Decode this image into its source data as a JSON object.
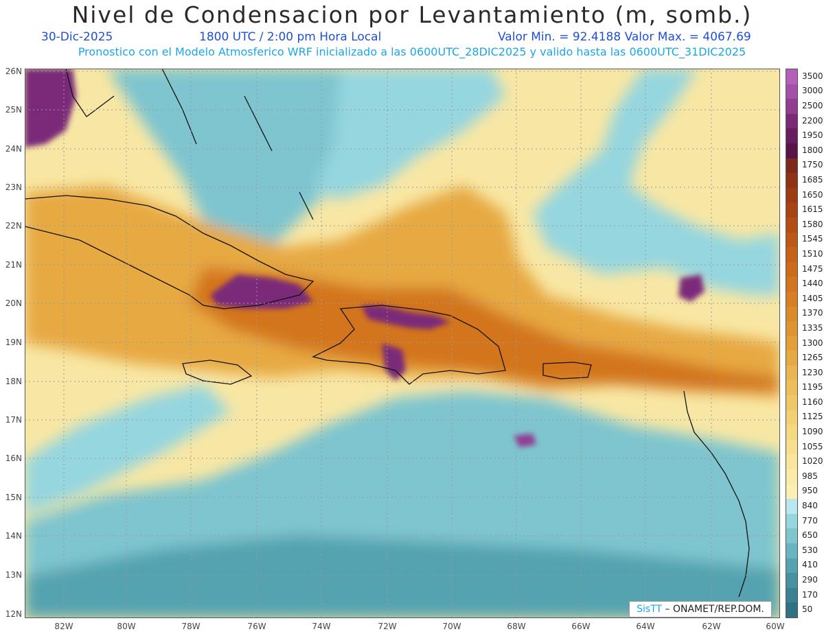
{
  "title": "Nivel de Condensacion por Levantamiento (m, somb.)",
  "date": "30-Dic-2025",
  "time": "1800 UTC / 2:00 pm Hora Local",
  "stats": "Valor Min. = 92.4188   Valor Max. = 4067.69",
  "description": "Pronostico con el Modelo Atmosferico WRF inicializado a las 0600UTC_28DIC2025 y valido hasta las  0600UTC_31DIC2025",
  "credit_sis": "SisTT",
  "credit_rest": " – ONAMET/REP.DOM.",
  "lat_labels": [
    "26N",
    "25N",
    "24N",
    "23N",
    "22N",
    "21N",
    "20N",
    "19N",
    "18N",
    "17N",
    "16N",
    "15N",
    "14N",
    "13N",
    "12N"
  ],
  "lon_labels": [
    "82W",
    "80W",
    "78W",
    "76W",
    "74W",
    "72W",
    "70W",
    "68W",
    "66W",
    "64W",
    "62W",
    "60W"
  ],
  "colorbar": {
    "labels": [
      "3500",
      "3000",
      "2500",
      "2200",
      "1950",
      "1800",
      "1750",
      "1685",
      "1650",
      "1615",
      "1580",
      "1545",
      "1510",
      "1475",
      "1440",
      "1405",
      "1370",
      "1335",
      "1300",
      "1265",
      "1230",
      "1195",
      "1160",
      "1125",
      "1090",
      "1055",
      "1020",
      "985",
      "950",
      "840",
      "770",
      "650",
      "530",
      "410",
      "290",
      "170",
      "50"
    ],
    "colors": [
      "#b65fb8",
      "#a64fa8",
      "#913d92",
      "#7a2a78",
      "#681e5e",
      "#5a1346",
      "#7e2a1a",
      "#8e3316",
      "#9c3b14",
      "#a84413",
      "#b44d14",
      "#be5716",
      "#c66118",
      "#cd6b1b",
      "#d3751f",
      "#d87f24",
      "#dc892a",
      "#e09431",
      "#e49f39",
      "#e7a943",
      "#eab44e",
      "#edbe5a",
      "#f0c767",
      "#f3d074",
      "#f5d882",
      "#f7df8f",
      "#f9e59c",
      "#fbeaa8",
      "#fcefb3",
      "#b9e8ee",
      "#95d6df",
      "#7ec5cf",
      "#68b4bf",
      "#55a3b0",
      "#4692a1",
      "#3a8292",
      "#2e7283"
    ]
  }
}
